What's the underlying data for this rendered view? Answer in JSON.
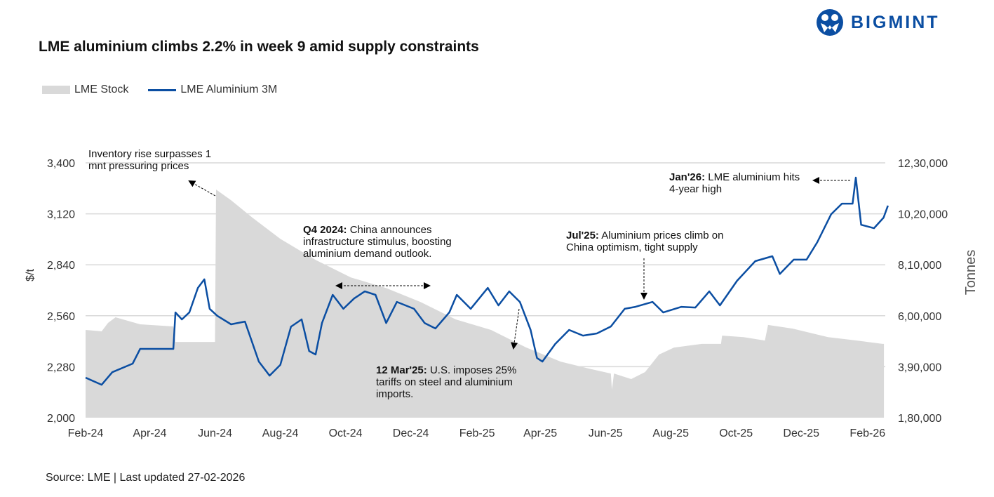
{
  "brand": {
    "name": "BIGMINT",
    "color": "#0b4ea2"
  },
  "title": "LME aluminium climbs 2.2% in week 9 amid supply constraints",
  "source": "Source: LME | Last updated 27-02-2026",
  "chart_data": {
    "type": "line+area",
    "title": "LME aluminium climbs 2.2% in week 9 amid supply constraints",
    "legend_position": "top-left",
    "grid": "horizontal",
    "x_ticks": [
      "Feb-24",
      "Apr-24",
      "Jun-24",
      "Aug-24",
      "Oct-24",
      "Dec-24",
      "Feb-25",
      "Apr-25",
      "Jun-25",
      "Aug-25",
      "Oct-25",
      "Dec-25",
      "Feb-26"
    ],
    "x_tick_dates": [
      "2024-02-01",
      "2024-04-01",
      "2024-06-01",
      "2024-08-01",
      "2024-10-01",
      "2024-12-01",
      "2025-02-01",
      "2025-04-01",
      "2025-06-01",
      "2025-08-01",
      "2025-10-01",
      "2025-12-01",
      "2026-02-01"
    ],
    "xlim": [
      "2024-02-01",
      "2026-02-27"
    ],
    "y_left": {
      "label": "$/t",
      "lim": [
        2000,
        3400
      ],
      "ticks": [
        "2,000",
        "2,280",
        "2,560",
        "2,840",
        "3,120",
        "3,400"
      ]
    },
    "y_right": {
      "label": "Tonnes",
      "lim": [
        180000,
        1230000
      ],
      "ticks": [
        "1,80,000",
        "3,90,000",
        "6,00,000",
        "8,10,000",
        "10,20,000",
        "12,30,000"
      ]
    },
    "series": [
      {
        "name": "LME Stock",
        "type": "area",
        "axis": "right",
        "color": "#d9d9d9",
        "points": [
          [
            "2024-02-01",
            541600
          ],
          [
            "2024-02-16",
            535800
          ],
          [
            "2024-02-22",
            570500
          ],
          [
            "2024-02-29",
            593600
          ],
          [
            "2024-03-23",
            564700
          ],
          [
            "2024-04-23",
            556000
          ],
          [
            "2024-04-25",
            492000
          ],
          [
            "2024-06-01",
            492000
          ],
          [
            "2024-06-02",
            1120000
          ],
          [
            "2024-06-16",
            1076000
          ],
          [
            "2024-07-06",
            1004000
          ],
          [
            "2024-08-01",
            917000
          ],
          [
            "2024-09-03",
            830000
          ],
          [
            "2024-10-06",
            758000
          ],
          [
            "2024-11-08",
            714000
          ],
          [
            "2024-12-10",
            657000
          ],
          [
            "2025-01-12",
            585000
          ],
          [
            "2025-02-14",
            541600
          ],
          [
            "2025-03-19",
            469000
          ],
          [
            "2025-04-20",
            411000
          ],
          [
            "2025-05-17",
            382000
          ],
          [
            "2025-06-06",
            362000
          ],
          [
            "2025-06-07",
            296000
          ],
          [
            "2025-06-09",
            362000
          ],
          [
            "2025-06-25",
            339000
          ],
          [
            "2025-07-08",
            368000
          ],
          [
            "2025-07-21",
            440000
          ],
          [
            "2025-08-04",
            469000
          ],
          [
            "2025-08-30",
            484000
          ],
          [
            "2025-09-17",
            484000
          ],
          [
            "2025-09-18",
            518000
          ],
          [
            "2025-10-08",
            512000
          ],
          [
            "2025-10-28",
            498000
          ],
          [
            "2025-10-31",
            562000
          ],
          [
            "2025-11-23",
            547000
          ],
          [
            "2025-12-26",
            512000
          ],
          [
            "2026-01-22",
            498000
          ],
          [
            "2026-02-15",
            484000
          ]
        ]
      },
      {
        "name": "LME Aluminium 3M",
        "type": "line",
        "axis": "left",
        "color": "#0b4ea2",
        "points": [
          [
            "2024-02-01",
            2220
          ],
          [
            "2024-02-16",
            2181
          ],
          [
            "2024-02-26",
            2250
          ],
          [
            "2024-03-16",
            2297
          ],
          [
            "2024-03-23",
            2378
          ],
          [
            "2024-04-23",
            2378
          ],
          [
            "2024-04-25",
            2578
          ],
          [
            "2024-05-01",
            2540
          ],
          [
            "2024-05-08",
            2578
          ],
          [
            "2024-05-16",
            2713
          ],
          [
            "2024-05-22",
            2760
          ],
          [
            "2024-05-27",
            2598
          ],
          [
            "2024-06-03",
            2560
          ],
          [
            "2024-06-16",
            2513
          ],
          [
            "2024-06-29",
            2528
          ],
          [
            "2024-07-12",
            2308
          ],
          [
            "2024-07-22",
            2231
          ],
          [
            "2024-08-01",
            2290
          ],
          [
            "2024-08-11",
            2500
          ],
          [
            "2024-08-21",
            2540
          ],
          [
            "2024-08-28",
            2366
          ],
          [
            "2024-09-03",
            2347
          ],
          [
            "2024-09-09",
            2520
          ],
          [
            "2024-09-19",
            2675
          ],
          [
            "2024-09-29",
            2598
          ],
          [
            "2024-10-09",
            2655
          ],
          [
            "2024-10-19",
            2694
          ],
          [
            "2024-10-29",
            2675
          ],
          [
            "2024-11-08",
            2520
          ],
          [
            "2024-11-18",
            2636
          ],
          [
            "2024-12-04",
            2598
          ],
          [
            "2024-12-14",
            2520
          ],
          [
            "2024-12-24",
            2490
          ],
          [
            "2025-01-06",
            2578
          ],
          [
            "2025-01-13",
            2675
          ],
          [
            "2025-01-26",
            2598
          ],
          [
            "2025-02-11",
            2713
          ],
          [
            "2025-02-21",
            2617
          ],
          [
            "2025-03-03",
            2694
          ],
          [
            "2025-03-13",
            2636
          ],
          [
            "2025-03-23",
            2482
          ],
          [
            "2025-03-29",
            2328
          ],
          [
            "2025-04-03",
            2308
          ],
          [
            "2025-04-15",
            2405
          ],
          [
            "2025-04-28",
            2482
          ],
          [
            "2025-05-11",
            2451
          ],
          [
            "2025-05-24",
            2463
          ],
          [
            "2025-06-06",
            2501
          ],
          [
            "2025-06-19",
            2598
          ],
          [
            "2025-06-29",
            2609
          ],
          [
            "2025-07-15",
            2636
          ],
          [
            "2025-07-25",
            2578
          ],
          [
            "2025-08-11",
            2609
          ],
          [
            "2025-08-24",
            2605
          ],
          [
            "2025-09-06",
            2694
          ],
          [
            "2025-09-16",
            2617
          ],
          [
            "2025-10-02",
            2752
          ],
          [
            "2025-10-19",
            2860
          ],
          [
            "2025-11-04",
            2887
          ],
          [
            "2025-11-11",
            2790
          ],
          [
            "2025-11-24",
            2868
          ],
          [
            "2025-12-06",
            2868
          ],
          [
            "2025-12-16",
            2964
          ],
          [
            "2025-12-29",
            3118
          ],
          [
            "2026-01-08",
            3176
          ],
          [
            "2026-01-18",
            3176
          ],
          [
            "2026-01-21",
            3319
          ],
          [
            "2026-01-26",
            3060
          ],
          [
            "2026-02-07",
            3041
          ],
          [
            "2026-02-16",
            3099
          ],
          [
            "2026-02-20",
            3165
          ]
        ]
      }
    ],
    "annotations": [
      {
        "text": "Inventory rise surpasses 1 mnt pressuring prices"
      },
      {
        "bold": "Q4 2024:",
        "text": " China announces infrastructure stimulus, boosting aluminium demand outlook."
      },
      {
        "bold": "12 Mar'25:",
        "text": " U.S. imposes 25% tariffs on steel and aluminium imports."
      },
      {
        "bold": "Jul'25:",
        "text": " Aluminium prices climb on China optimism, tight supply"
      },
      {
        "bold": "Jan'26:",
        "text": " LME aluminium hits 4-year high"
      }
    ]
  }
}
